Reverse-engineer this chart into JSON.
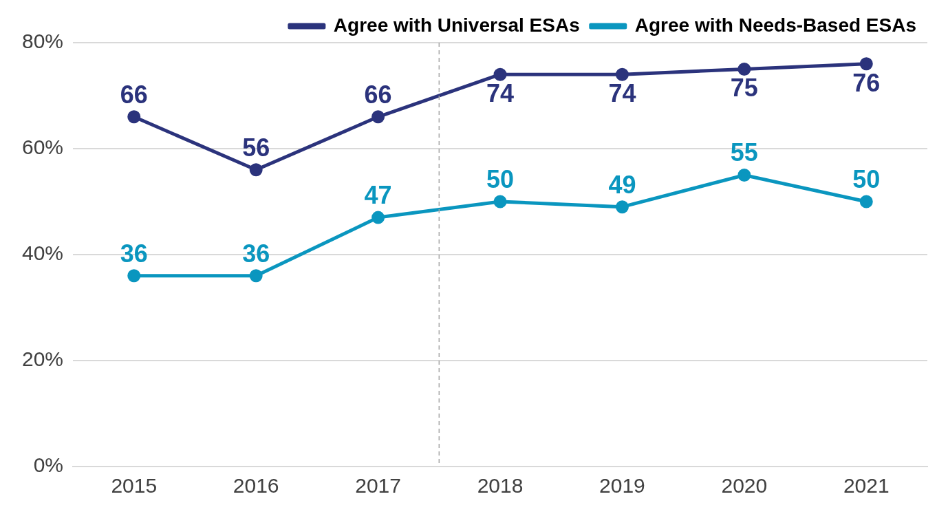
{
  "chart_data": {
    "type": "line",
    "x": [
      2015,
      2016,
      2017,
      2018,
      2019,
      2020,
      2021
    ],
    "xlim": [
      2014.5,
      2021.5
    ],
    "xticks": [
      2015,
      2016,
      2017,
      2018,
      2019,
      2020,
      2021
    ],
    "ylim": [
      0,
      80
    ],
    "yticks": [
      {
        "value": 0,
        "label": "0%"
      },
      {
        "value": 20,
        "label": "20%"
      },
      {
        "value": 40,
        "label": "40%"
      },
      {
        "value": 60,
        "label": "60%"
      },
      {
        "value": 80,
        "label": "80%"
      }
    ],
    "series": [
      {
        "name": "Agree with Universal ESAs",
        "color": "#2b337c",
        "values": [
          66,
          56,
          66,
          74,
          74,
          75,
          76
        ]
      },
      {
        "name": "Agree with Needs-Based ESAs",
        "color": "#0a96bf",
        "values": [
          36,
          36,
          47,
          50,
          49,
          55,
          50
        ]
      }
    ],
    "ref_lines": [
      {
        "axis": "x",
        "value": 2017.5,
        "color": "#a6a6a6",
        "line_style": "dashed"
      }
    ],
    "data_labels": true,
    "grid": "y",
    "legend": "top right",
    "marker": "circle",
    "line_style": "solid"
  }
}
